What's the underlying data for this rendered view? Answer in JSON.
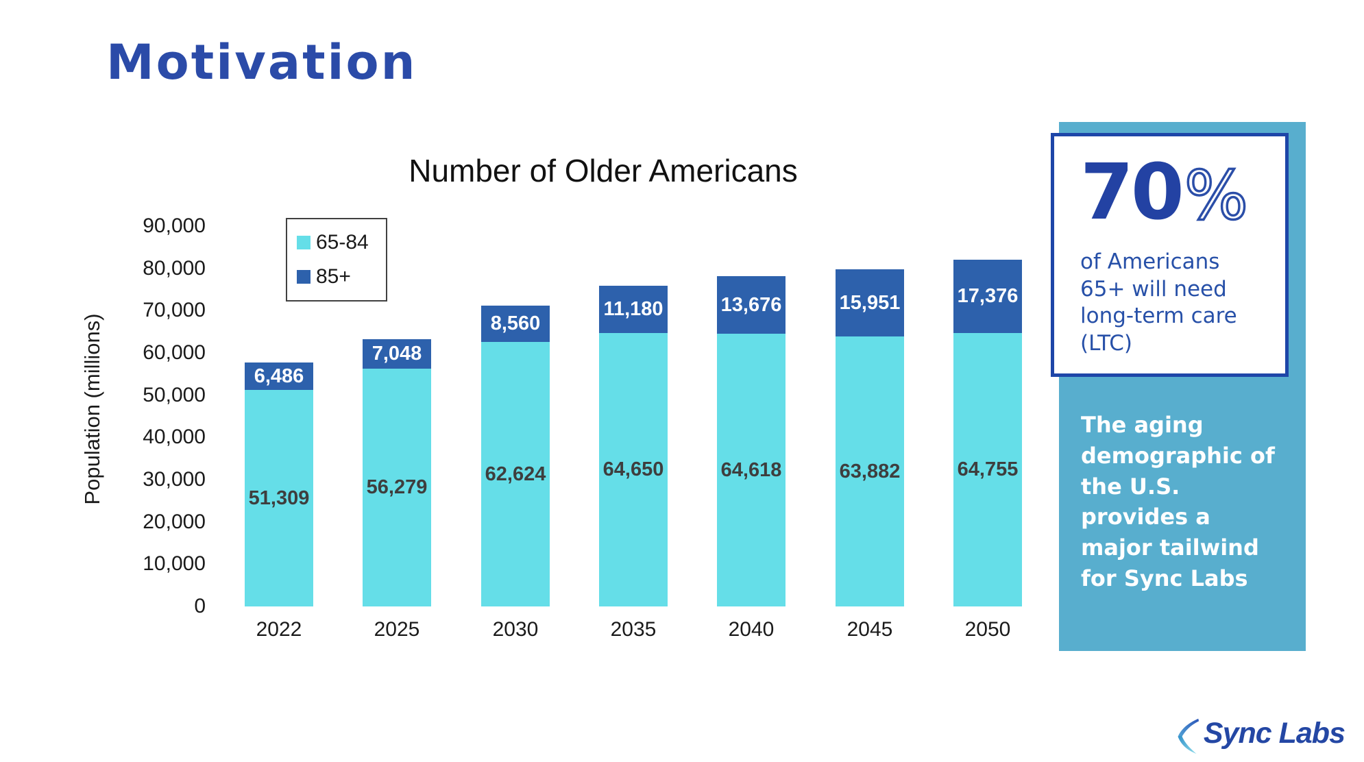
{
  "slide": {
    "title": "Motivation"
  },
  "chart_data": {
    "type": "bar",
    "stacked": true,
    "title": "Number of Older Americans",
    "xlabel": "",
    "ylabel": "Population (millions)",
    "categories": [
      "2022",
      "2025",
      "2030",
      "2035",
      "2040",
      "2045",
      "2050"
    ],
    "series": [
      {
        "name": "65-84",
        "color": "#65DEE8",
        "label_color": "#3E3E3E",
        "values": [
          51309,
          56279,
          62624,
          64650,
          64618,
          63882,
          64755
        ]
      },
      {
        "name": "85+",
        "color": "#2D61AC",
        "label_color": "#FFFFFF",
        "values": [
          6486,
          7048,
          8560,
          11180,
          13676,
          15951,
          17376
        ]
      }
    ],
    "ylim": [
      0,
      90000
    ],
    "ytick_step": 10000,
    "grid": false,
    "data_labels": true,
    "legend_position": "top-left-inside"
  },
  "stat_card": {
    "value": "70",
    "unit": "%",
    "text": "of Americans 65+ will need long-term care (LTC)"
  },
  "panel": {
    "text": "The aging demographic of the U.S. provides a major tailwind for Sync Labs"
  },
  "logo": {
    "text": "Sync Labs"
  },
  "colors": {
    "accent_blue": "#2B4BA8",
    "bar_cyan": "#65DEE8",
    "bar_dark_blue": "#2D61AC",
    "panel_blue": "#58AECE",
    "card_border_blue": "#1E46A8"
  }
}
